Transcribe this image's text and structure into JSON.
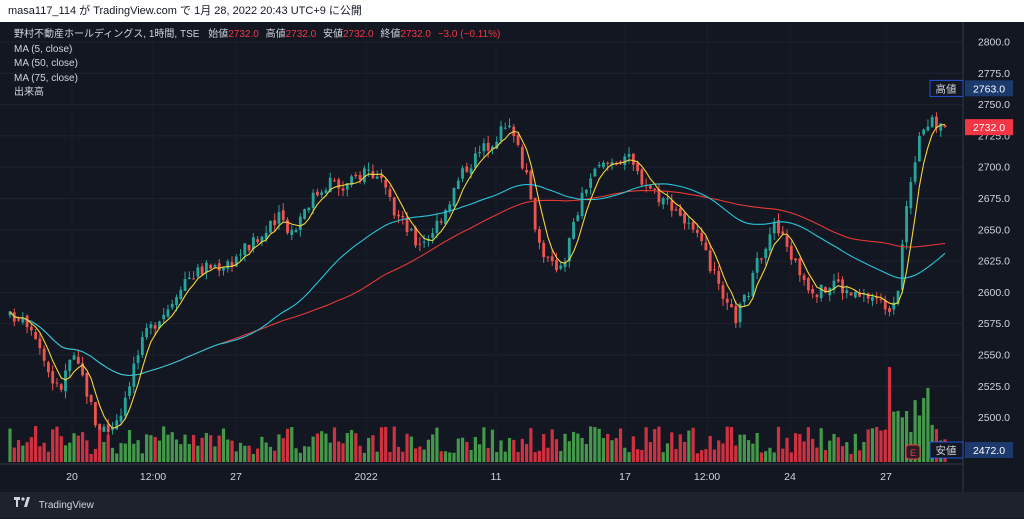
{
  "header": {
    "text": "masa117_114 が TradingView.com で 1月 28, 2022 20:43 UTC+9 に公開"
  },
  "legend": {
    "symbol": "野村不動産ホールディングス, 1時間, TSE",
    "ohlc": {
      "open_label": "始値",
      "open": "2732.0",
      "high_label": "高値",
      "high": "2732.0",
      "low_label": "安値",
      "low": "2732.0",
      "close_label": "終値",
      "close": "2732.0",
      "change": "−3.0 (−0.11%)"
    },
    "indicators": [
      "MA (5, close)",
      "MA (50, close)",
      "MA (75, close)",
      "出来高"
    ]
  },
  "footer": {
    "brand": "TradingView"
  },
  "colors": {
    "up": "#26a69a",
    "down": "#ef5350",
    "vol_up": "#4caf50",
    "vol_down": "#f23645",
    "ma5": "#f5d33b",
    "ma50": "#26c6da",
    "ma75": "#e53935"
  },
  "chart_data": {
    "type": "candlestick",
    "y_axis": {
      "min": 2472.5,
      "max": 2800,
      "ticks": [
        2500,
        2525,
        2550,
        2575,
        2600,
        2625,
        2650,
        2675,
        2700,
        2725,
        2750,
        2775,
        2800
      ],
      "position": "right"
    },
    "x_axis": {
      "labels": [
        "20",
        "12:00",
        "27",
        "2022",
        "11",
        "17",
        "12:00",
        "24",
        "27"
      ]
    },
    "price_labels": [
      {
        "label": "高値",
        "value": "2763.0"
      },
      {
        "label": "",
        "value": "2732.0"
      },
      {
        "label": "安値",
        "value": "2472.0"
      }
    ],
    "close_path": [
      2580,
      2583,
      2570,
      2540,
      2520,
      2550,
      2530,
      2495,
      2490,
      2505,
      2540,
      2565,
      2580,
      2590,
      2610,
      2615,
      2620,
      2622,
      2625,
      2635,
      2640,
      2650,
      2660,
      2648,
      2670,
      2680,
      2690,
      2682,
      2690,
      2700,
      2690,
      2668,
      2655,
      2640,
      2645,
      2660,
      2680,
      2700,
      2710,
      2720,
      2730,
      2730,
      2690,
      2640,
      2620,
      2625,
      2660,
      2690,
      2700,
      2705,
      2710,
      2695,
      2685,
      2675,
      2670,
      2655,
      2640,
      2620,
      2590,
      2580,
      2600,
      2630,
      2655,
      2640,
      2620,
      2605,
      2600,
      2610,
      2600,
      2595,
      2598,
      2590,
      2590,
      2680,
      2732,
      2735,
      2732
    ]
  }
}
